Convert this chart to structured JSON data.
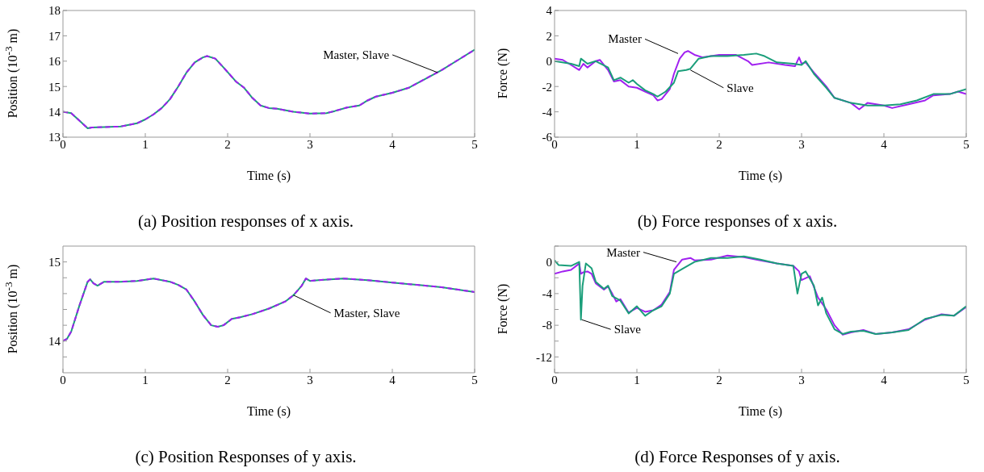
{
  "chart_data": [
    {
      "type": "line",
      "xlabel": "Time (s)",
      "ylabel": "Position (10$^{-3}$ m)",
      "xlim": [
        0,
        5
      ],
      "ylim": [
        13,
        18
      ],
      "xticks": [
        0,
        1,
        2,
        3,
        4,
        5
      ],
      "yticks": [
        13,
        14,
        15,
        16,
        17,
        18
      ],
      "annotations": [
        {
          "text": "Master, Slave",
          "x": 4.55,
          "y": 15.55
        },
        "(a) Position responses of x axis."
      ],
      "series": [
        {
          "color": "#a020f0",
          "line_style": "dashed",
          "x": [
            0,
            0.1,
            0.2,
            0.3,
            0.35,
            0.5,
            0.7,
            0.9,
            1.0,
            1.1,
            1.2,
            1.3,
            1.4,
            1.5,
            1.6,
            1.7,
            1.75,
            1.85,
            1.95,
            2.1,
            2.2,
            2.3,
            2.4,
            2.5,
            2.6,
            2.8,
            3.0,
            3.2,
            3.3,
            3.45,
            3.6,
            3.7,
            3.8,
            4.0,
            4.2,
            4.4,
            4.6,
            4.8,
            5.0
          ],
          "values": [
            14.0,
            13.95,
            13.65,
            13.35,
            13.38,
            13.4,
            13.42,
            13.55,
            13.7,
            13.9,
            14.15,
            14.5,
            15.0,
            15.55,
            15.95,
            16.15,
            16.2,
            16.1,
            15.75,
            15.2,
            14.95,
            14.55,
            14.25,
            14.15,
            14.12,
            14.0,
            13.93,
            13.95,
            14.03,
            14.17,
            14.25,
            14.45,
            14.6,
            14.75,
            14.95,
            15.3,
            15.65,
            16.05,
            16.45
          ]
        },
        {
          "color": "#1a9e7a",
          "x": [
            0,
            0.1,
            0.2,
            0.3,
            0.35,
            0.5,
            0.7,
            0.9,
            1.0,
            1.1,
            1.2,
            1.3,
            1.4,
            1.5,
            1.6,
            1.7,
            1.75,
            1.85,
            1.95,
            2.1,
            2.2,
            2.3,
            2.4,
            2.5,
            2.6,
            2.8,
            3.0,
            3.2,
            3.3,
            3.45,
            3.6,
            3.7,
            3.8,
            4.0,
            4.2,
            4.4,
            4.6,
            4.8,
            5.0
          ],
          "values": [
            14.0,
            13.95,
            13.65,
            13.35,
            13.38,
            13.4,
            13.42,
            13.55,
            13.7,
            13.9,
            14.15,
            14.5,
            15.0,
            15.55,
            15.95,
            16.15,
            16.2,
            16.1,
            15.75,
            15.2,
            14.95,
            14.55,
            14.25,
            14.15,
            14.12,
            14.0,
            13.93,
            13.95,
            14.03,
            14.17,
            14.25,
            14.45,
            14.6,
            14.75,
            14.95,
            15.3,
            15.65,
            16.05,
            16.45
          ]
        }
      ]
    },
    {
      "type": "line",
      "xlabel": "Time (s)",
      "ylabel": "Force (N)",
      "xlim": [
        0,
        5
      ],
      "ylim": [
        -6,
        4
      ],
      "xticks": [
        0,
        1,
        2,
        3,
        4,
        5
      ],
      "yticks": [
        -6,
        -4,
        -2,
        0,
        2,
        4
      ],
      "annotations": [
        {
          "text": "Master",
          "x": 1.5,
          "y": 0.6
        },
        {
          "text": "Slave",
          "x": 1.65,
          "y": -0.7
        },
        "(b) Force responses of x axis."
      ],
      "series": [
        {
          "color": "#a020f0",
          "x": [
            0,
            0.1,
            0.2,
            0.3,
            0.35,
            0.4,
            0.5,
            0.55,
            0.65,
            0.72,
            0.8,
            0.9,
            1.0,
            1.1,
            1.2,
            1.25,
            1.3,
            1.4,
            1.45,
            1.52,
            1.58,
            1.62,
            1.7,
            1.8,
            2.0,
            2.2,
            2.35,
            2.4,
            2.6,
            2.8,
            2.92,
            2.97,
            3.0,
            3.05,
            3.15,
            3.3,
            3.4,
            3.6,
            3.7,
            3.8,
            4.0,
            4.1,
            4.3,
            4.5,
            4.6,
            4.8,
            4.9,
            5.0
          ],
          "values": [
            0.2,
            0.1,
            -0.3,
            -0.7,
            -0.2,
            -0.5,
            0,
            0.1,
            -0.7,
            -1.6,
            -1.5,
            -2,
            -2.1,
            -2.4,
            -2.7,
            -3.1,
            -3,
            -2.2,
            -1,
            0.2,
            0.7,
            0.8,
            0.5,
            0.3,
            0.5,
            0.5,
            0,
            -0.3,
            -0.1,
            -0.3,
            -0.4,
            0.3,
            -0.2,
            -0.1,
            -0.9,
            -2,
            -2.9,
            -3.3,
            -3.8,
            -3.3,
            -3.5,
            -3.7,
            -3.4,
            -3.1,
            -2.7,
            -2.6,
            -2.4,
            -2.6
          ]
        },
        {
          "color": "#1a9e7a",
          "x": [
            0,
            0.2,
            0.3,
            0.32,
            0.4,
            0.5,
            0.65,
            0.72,
            0.8,
            0.9,
            0.95,
            1.0,
            1.1,
            1.2,
            1.25,
            1.35,
            1.45,
            1.5,
            1.6,
            1.65,
            1.75,
            1.9,
            2.1,
            2.3,
            2.45,
            2.55,
            2.7,
            2.9,
            3.0,
            3.05,
            3.15,
            3.3,
            3.4,
            3.6,
            3.8,
            4.0,
            4.2,
            4.4,
            4.6,
            4.8,
            5.0
          ],
          "values": [
            0,
            -0.2,
            -0.4,
            0.2,
            -0.2,
            0,
            -0.5,
            -1.5,
            -1.3,
            -1.7,
            -1.5,
            -1.8,
            -2.3,
            -2.6,
            -2.8,
            -2.4,
            -1.7,
            -0.8,
            -0.7,
            -0.6,
            0.2,
            0.4,
            0.4,
            0.5,
            0.6,
            0.4,
            -0.1,
            -0.2,
            -0.3,
            0,
            -1,
            -2.1,
            -2.9,
            -3.3,
            -3.5,
            -3.5,
            -3.4,
            -3.1,
            -2.6,
            -2.6,
            -2.2
          ]
        }
      ]
    },
    {
      "type": "line",
      "xlabel": "Time (s)",
      "ylabel": "Position (10$^{-3}$ m)",
      "xlim": [
        0,
        5
      ],
      "ylim": [
        13.6,
        15.2
      ],
      "xticks": [
        0,
        1,
        2,
        3,
        4,
        5
      ],
      "yticks": [
        {
          "value": 13.8,
          "label": null
        },
        14,
        {
          "value": 14.2,
          "label": null
        },
        {
          "value": 14.4,
          "label": null
        },
        {
          "value": 14.6,
          "label": null
        },
        {
          "value": 14.8,
          "label": null
        },
        15
      ],
      "annotations": [
        {
          "text": "Master, Slave",
          "x": 2.8,
          "y": 14.58
        },
        "(c) Position Responses of y axis."
      ],
      "series": [
        {
          "color": "#a020f0",
          "line_style": "dashed",
          "x": [
            0,
            0.05,
            0.1,
            0.2,
            0.3,
            0.33,
            0.37,
            0.42,
            0.5,
            0.7,
            0.9,
            1.1,
            1.3,
            1.4,
            1.5,
            1.6,
            1.7,
            1.8,
            1.88,
            1.95,
            2.05,
            2.15,
            2.3,
            2.5,
            2.7,
            2.8,
            2.9,
            2.95,
            3.0,
            3.1,
            3.4,
            3.7,
            4.0,
            4.3,
            4.6,
            5.0
          ],
          "values": [
            14.0,
            14.03,
            14.12,
            14.45,
            14.75,
            14.78,
            14.73,
            14.7,
            14.75,
            14.75,
            14.76,
            14.79,
            14.75,
            14.71,
            14.65,
            14.5,
            14.33,
            14.2,
            14.18,
            14.2,
            14.28,
            14.3,
            14.34,
            14.41,
            14.5,
            14.58,
            14.7,
            14.79,
            14.76,
            14.77,
            14.79,
            14.77,
            14.74,
            14.71,
            14.68,
            14.62
          ]
        },
        {
          "color": "#1a9e7a",
          "x": [
            0,
            0.05,
            0.1,
            0.2,
            0.3,
            0.33,
            0.37,
            0.42,
            0.5,
            0.7,
            0.9,
            1.1,
            1.3,
            1.4,
            1.5,
            1.6,
            1.7,
            1.8,
            1.88,
            1.95,
            2.05,
            2.15,
            2.3,
            2.5,
            2.7,
            2.8,
            2.9,
            2.95,
            3.0,
            3.1,
            3.4,
            3.7,
            4.0,
            4.3,
            4.6,
            5.0
          ],
          "values": [
            14.0,
            14.03,
            14.12,
            14.45,
            14.75,
            14.78,
            14.73,
            14.7,
            14.75,
            14.75,
            14.76,
            14.79,
            14.75,
            14.71,
            14.65,
            14.5,
            14.33,
            14.2,
            14.18,
            14.2,
            14.28,
            14.3,
            14.34,
            14.41,
            14.5,
            14.58,
            14.7,
            14.79,
            14.76,
            14.77,
            14.79,
            14.77,
            14.74,
            14.71,
            14.68,
            14.62
          ]
        }
      ]
    },
    {
      "type": "line",
      "xlabel": "Time (s)",
      "ylabel": "Force (N)",
      "xlim": [
        0,
        5
      ],
      "ylim": [
        -14,
        2
      ],
      "xticks": [
        0,
        1,
        2,
        3,
        4,
        5
      ],
      "yticks": [
        {
          "value": -14,
          "label": null
        },
        -12,
        {
          "value": -10,
          "label": null
        },
        -8,
        {
          "value": -6,
          "label": null
        },
        -4,
        {
          "value": -2,
          "label": null
        },
        0,
        {
          "value": 2,
          "label": null
        }
      ],
      "annotations": [
        {
          "text": "Master",
          "x": 1.48,
          "y": 0
        },
        {
          "text": "Slave",
          "x": 0.33,
          "y": -7.3
        },
        "(d) Force Responses of y axis."
      ],
      "series": [
        {
          "color": "#a020f0",
          "x": [
            0,
            0.1,
            0.2,
            0.3,
            0.32,
            0.35,
            0.4,
            0.45,
            0.5,
            0.6,
            0.65,
            0.7,
            0.75,
            0.8,
            0.9,
            1.0,
            1.1,
            1.2,
            1.3,
            1.4,
            1.45,
            1.55,
            1.65,
            1.7,
            1.9,
            2.1,
            2.3,
            2.5,
            2.7,
            2.9,
            2.97,
            3.0,
            3.1,
            3.2,
            3.3,
            3.4,
            3.5,
            3.6,
            3.75,
            3.9,
            4.1,
            4.3,
            4.5,
            4.7,
            4.85,
            5.0
          ],
          "values": [
            -1.5,
            -1.2,
            -1,
            -0.2,
            -1.5,
            -1.3,
            -1.2,
            -1.5,
            -2.7,
            -3.5,
            -3.1,
            -4,
            -5,
            -4.7,
            -6.4,
            -5.8,
            -6.3,
            -6.1,
            -5.4,
            -3.8,
            -1,
            0.3,
            0.5,
            0.2,
            0.3,
            0.8,
            0.6,
            0.2,
            -0.2,
            -0.5,
            -1.2,
            -2.3,
            -1.8,
            -4.5,
            -6,
            -8,
            -9.2,
            -8.9,
            -8.6,
            -9.1,
            -8.9,
            -8.5,
            -7.3,
            -6.6,
            -6.8,
            -5.7
          ]
        },
        {
          "color": "#1a9e7a",
          "x": [
            0,
            0.05,
            0.2,
            0.3,
            0.32,
            0.34,
            0.38,
            0.45,
            0.5,
            0.6,
            0.65,
            0.7,
            0.8,
            0.9,
            1.0,
            1.1,
            1.2,
            1.3,
            1.4,
            1.45,
            1.55,
            1.7,
            1.9,
            2.1,
            2.3,
            2.5,
            2.7,
            2.9,
            2.95,
            3.0,
            3.05,
            3.15,
            3.2,
            3.25,
            3.3,
            3.4,
            3.5,
            3.6,
            3.75,
            3.9,
            4.1,
            4.3,
            4.5,
            4.7,
            4.85,
            5.0
          ],
          "values": [
            0.2,
            -0.4,
            -0.5,
            0,
            -7.3,
            -3,
            -0.2,
            -0.8,
            -2.5,
            -3.4,
            -3,
            -4.3,
            -4.9,
            -6.5,
            -5.6,
            -6.8,
            -6.1,
            -5.6,
            -4,
            -1.5,
            -0.9,
            0,
            0.5,
            0.5,
            0.7,
            0.3,
            -0.2,
            -0.5,
            -4,
            -1.5,
            -1.2,
            -3,
            -5.5,
            -4.5,
            -6.5,
            -8.5,
            -9.1,
            -8.8,
            -8.7,
            -9.1,
            -8.9,
            -8.6,
            -7.2,
            -6.7,
            -6.8,
            -5.6
          ]
        }
      ]
    }
  ]
}
